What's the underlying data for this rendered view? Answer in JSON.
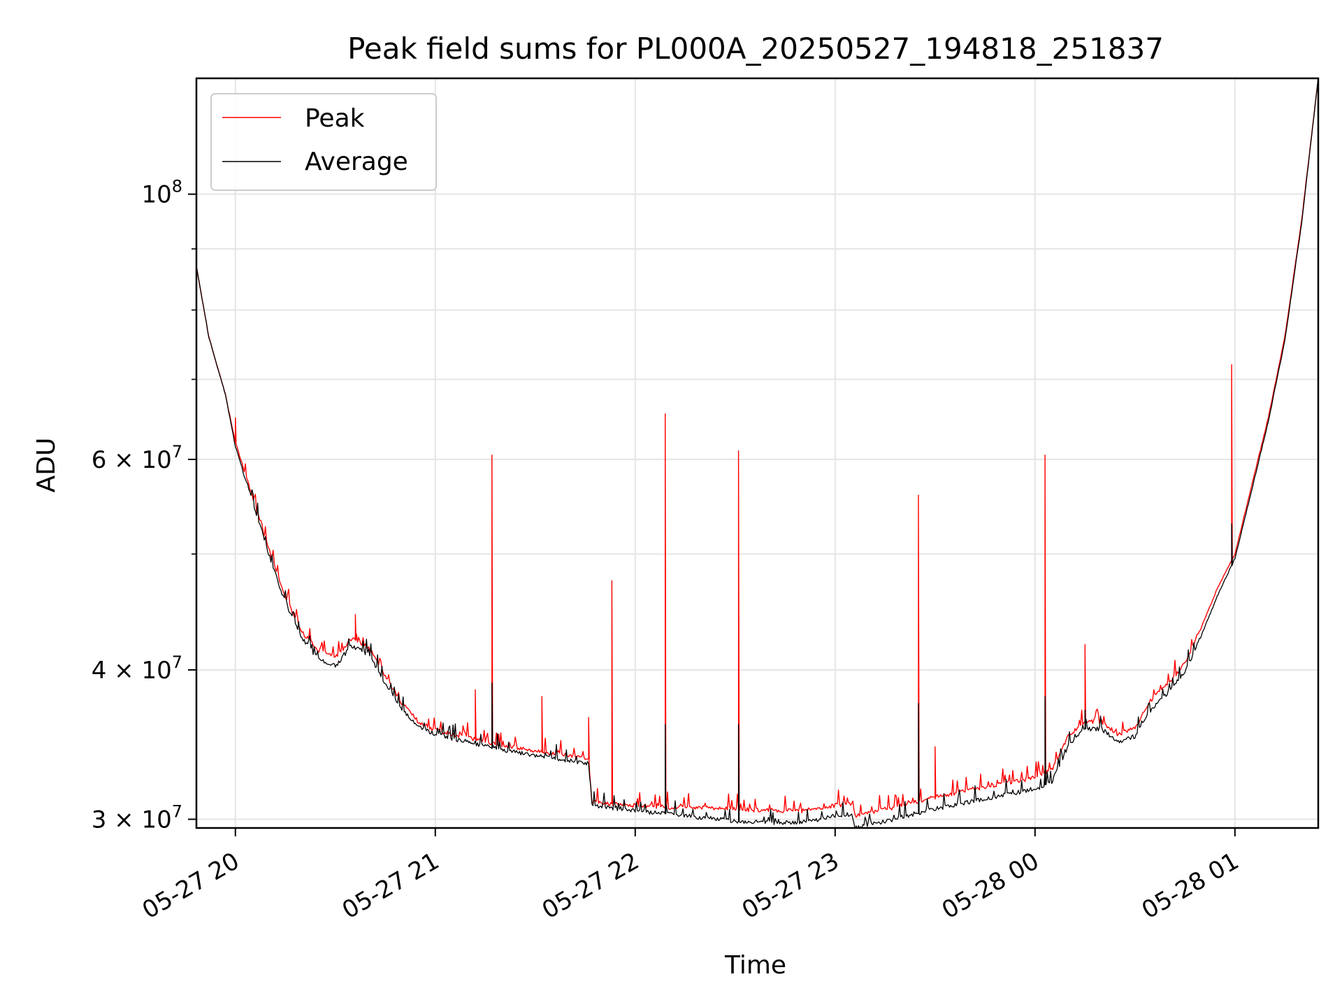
{
  "chart_data": {
    "type": "line",
    "title": "Peak field sums for PL000A_20250527_194818_251837",
    "xlabel": "Time",
    "ylabel": "ADU",
    "yscale": "log",
    "xlim": [
      "2025-05-27 19:48:18",
      "2025-05-28 01:25:00"
    ],
    "ylim": [
      29500000,
      125000000
    ],
    "grid": true,
    "legend_position": "upper-left",
    "x_ticks": [
      "05-27 20",
      "05-27 21",
      "05-27 22",
      "05-27 23",
      "05-28 00",
      "05-28 01"
    ],
    "y_ticks": [
      {
        "value": 30000000,
        "label": "3 × 10",
        "exp": "7"
      },
      {
        "value": 40000000,
        "label": "4 × 10",
        "exp": "7"
      },
      {
        "value": 60000000,
        "label": "6 × 10",
        "exp": "7"
      },
      {
        "value": 100000000,
        "label": "10",
        "exp": "8"
      }
    ],
    "y_minor_ticks": [
      50000000,
      70000000,
      80000000,
      90000000
    ],
    "series": [
      {
        "name": "Peak",
        "color": "#ff0000",
        "baseline": [
          [
            "2025-05-27 19:48",
            88000000
          ],
          [
            "2025-05-27 19:52",
            76000000
          ],
          [
            "2025-05-27 19:57",
            68000000
          ],
          [
            "2025-05-27 20:00",
            62000000
          ],
          [
            "2025-05-27 20:05",
            56000000
          ],
          [
            "2025-05-27 20:10",
            50500000
          ],
          [
            "2025-05-27 20:15",
            46000000
          ],
          [
            "2025-05-27 20:20",
            43000000
          ],
          [
            "2025-05-27 20:25",
            41500000
          ],
          [
            "2025-05-27 20:30",
            41000000
          ],
          [
            "2025-05-27 20:35",
            42500000
          ],
          [
            "2025-05-27 20:40",
            41800000
          ],
          [
            "2025-05-27 20:45",
            39500000
          ],
          [
            "2025-05-27 20:50",
            37500000
          ],
          [
            "2025-05-27 20:55",
            36200000
          ],
          [
            "2025-05-27 21:00",
            35600000
          ],
          [
            "2025-05-27 21:10",
            35100000
          ],
          [
            "2025-05-27 21:20",
            34600000
          ],
          [
            "2025-05-27 21:30",
            34200000
          ],
          [
            "2025-05-27 21:40",
            33900000
          ],
          [
            "2025-05-27 21:46",
            33700000
          ],
          [
            "2025-05-27 21:47",
            31000000
          ],
          [
            "2025-05-27 22:00",
            30800000
          ],
          [
            "2025-05-27 22:10",
            30700000
          ],
          [
            "2025-05-27 22:20",
            30700000
          ],
          [
            "2025-05-27 22:30",
            30600000
          ],
          [
            "2025-05-27 22:40",
            30500000
          ],
          [
            "2025-05-27 22:50",
            30500000
          ],
          [
            "2025-05-27 23:00",
            30800000
          ],
          [
            "2025-05-27 23:05",
            30900000
          ],
          [
            "2025-05-27 23:06",
            30200000
          ],
          [
            "2025-05-27 23:20",
            30800000
          ],
          [
            "2025-05-27 23:30",
            31300000
          ],
          [
            "2025-05-27 23:40",
            31700000
          ],
          [
            "2025-05-27 23:50",
            32100000
          ],
          [
            "2025-05-28 00:00",
            32500000
          ],
          [
            "2025-05-28 00:05",
            33000000
          ],
          [
            "2025-05-28 00:10",
            35200000
          ],
          [
            "2025-05-28 00:15",
            36200000
          ],
          [
            "2025-05-28 00:20",
            36200000
          ],
          [
            "2025-05-28 00:25",
            35300000
          ],
          [
            "2025-05-28 00:30",
            35800000
          ],
          [
            "2025-05-28 00:35",
            37800000
          ],
          [
            "2025-05-28 00:40",
            39000000
          ],
          [
            "2025-05-28 00:45",
            40500000
          ],
          [
            "2025-05-28 00:50",
            43500000
          ],
          [
            "2025-05-28 00:55",
            47000000
          ],
          [
            "2025-05-28 01:00",
            50000000
          ],
          [
            "2025-05-28 01:05",
            57000000
          ],
          [
            "2025-05-28 01:10",
            65000000
          ],
          [
            "2025-05-28 01:15",
            76000000
          ],
          [
            "2025-05-28 01:20",
            95000000
          ],
          [
            "2025-05-28 01:25",
            125000000
          ]
        ],
        "spikes": [
          [
            "2025-05-27 20:00",
            65000000
          ],
          [
            "2025-05-27 20:36",
            44500000
          ],
          [
            "2025-05-27 21:12",
            38500000
          ],
          [
            "2025-05-27 21:17",
            60500000
          ],
          [
            "2025-05-27 21:32",
            38000000
          ],
          [
            "2025-05-27 21:46",
            36500000
          ],
          [
            "2025-05-27 21:53",
            47500000
          ],
          [
            "2025-05-27 22:09",
            65500000
          ],
          [
            "2025-05-27 22:31",
            61000000
          ],
          [
            "2025-05-27 23:25",
            56000000
          ],
          [
            "2025-05-27 23:30",
            34500000
          ],
          [
            "2025-05-28 00:03",
            60500000
          ],
          [
            "2025-05-28 00:15",
            42000000
          ],
          [
            "2025-05-28 00:59",
            72000000
          ]
        ]
      },
      {
        "name": "Average",
        "color": "#000000",
        "baseline": [
          [
            "2025-05-27 19:48",
            88000000
          ],
          [
            "2025-05-27 19:52",
            76000000
          ],
          [
            "2025-05-27 19:57",
            68000000
          ],
          [
            "2025-05-27 20:00",
            61500000
          ],
          [
            "2025-05-27 20:05",
            55500000
          ],
          [
            "2025-05-27 20:10",
            50000000
          ],
          [
            "2025-05-27 20:15",
            45500000
          ],
          [
            "2025-05-27 20:20",
            42500000
          ],
          [
            "2025-05-27 20:25",
            40800000
          ],
          [
            "2025-05-27 20:30",
            40300000
          ],
          [
            "2025-05-27 20:35",
            41900000
          ],
          [
            "2025-05-27 20:40",
            41200000
          ],
          [
            "2025-05-27 20:45",
            39000000
          ],
          [
            "2025-05-27 20:50",
            37000000
          ],
          [
            "2025-05-27 20:55",
            35900000
          ],
          [
            "2025-05-27 21:00",
            35300000
          ],
          [
            "2025-05-27 21:10",
            34800000
          ],
          [
            "2025-05-27 21:20",
            34300000
          ],
          [
            "2025-05-27 21:30",
            33900000
          ],
          [
            "2025-05-27 21:40",
            33600000
          ],
          [
            "2025-05-27 21:46",
            33400000
          ],
          [
            "2025-05-27 21:47",
            30800000
          ],
          [
            "2025-05-27 22:00",
            30500000
          ],
          [
            "2025-05-27 22:10",
            30300000
          ],
          [
            "2025-05-27 22:20",
            30100000
          ],
          [
            "2025-05-27 22:30",
            29900000
          ],
          [
            "2025-05-27 22:40",
            29800000
          ],
          [
            "2025-05-27 22:50",
            29800000
          ],
          [
            "2025-05-27 23:00",
            30200000
          ],
          [
            "2025-05-27 23:05",
            30300000
          ],
          [
            "2025-05-27 23:06",
            29500000
          ],
          [
            "2025-05-27 23:20",
            30100000
          ],
          [
            "2025-05-27 23:30",
            30600000
          ],
          [
            "2025-05-27 23:40",
            31000000
          ],
          [
            "2025-05-27 23:50",
            31400000
          ],
          [
            "2025-05-28 00:00",
            31800000
          ],
          [
            "2025-05-28 00:05",
            32200000
          ],
          [
            "2025-05-28 00:10",
            34500000
          ],
          [
            "2025-05-28 00:15",
            35700000
          ],
          [
            "2025-05-28 00:20",
            35700000
          ],
          [
            "2025-05-28 00:25",
            34800000
          ],
          [
            "2025-05-28 00:30",
            35200000
          ],
          [
            "2025-05-28 00:35",
            37100000
          ],
          [
            "2025-05-28 00:40",
            38300000
          ],
          [
            "2025-05-28 00:45",
            39800000
          ],
          [
            "2025-05-28 00:50",
            42800000
          ],
          [
            "2025-05-28 00:55",
            46300000
          ],
          [
            "2025-05-28 01:00",
            49600000
          ],
          [
            "2025-05-28 01:05",
            56500000
          ],
          [
            "2025-05-28 01:10",
            64500000
          ],
          [
            "2025-05-28 01:15",
            75500000
          ],
          [
            "2025-05-28 01:20",
            94500000
          ],
          [
            "2025-05-28 01:25",
            125000000
          ]
        ],
        "spikes": [
          [
            "2025-05-27 21:17",
            39000000
          ],
          [
            "2025-05-27 22:09",
            36000000
          ],
          [
            "2025-05-27 22:31",
            36000000
          ],
          [
            "2025-05-27 23:25",
            37500000
          ],
          [
            "2025-05-28 00:03",
            38000000
          ],
          [
            "2025-05-28 00:15",
            37000000
          ],
          [
            "2025-05-28 00:59",
            53000000
          ]
        ]
      }
    ]
  }
}
